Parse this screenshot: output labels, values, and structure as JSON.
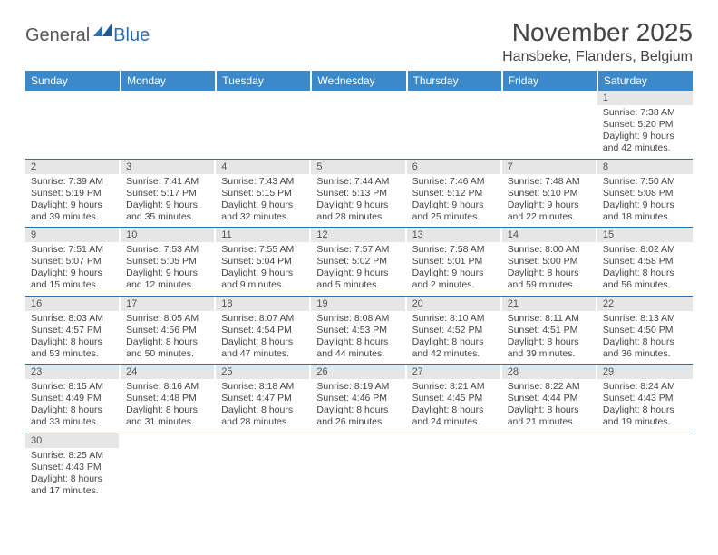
{
  "logo": {
    "part1": "General",
    "part2": "Blue"
  },
  "title": "November 2025",
  "location": "Hansbeke, Flanders, Belgium",
  "colors": {
    "header_bg": "#3b89c9",
    "header_text": "#ffffff",
    "daynum_bg": "#e6e6e6",
    "border": "#2b6fb3",
    "logo_gray": "#555555",
    "logo_blue": "#2b6fb3"
  },
  "weekdays": [
    "Sunday",
    "Monday",
    "Tuesday",
    "Wednesday",
    "Thursday",
    "Friday",
    "Saturday"
  ],
  "weeks": [
    [
      null,
      null,
      null,
      null,
      null,
      null,
      {
        "n": "1",
        "sr": "7:38 AM",
        "ss": "5:20 PM",
        "dl": "9 hours and 42 minutes."
      }
    ],
    [
      {
        "n": "2",
        "sr": "7:39 AM",
        "ss": "5:19 PM",
        "dl": "9 hours and 39 minutes."
      },
      {
        "n": "3",
        "sr": "7:41 AM",
        "ss": "5:17 PM",
        "dl": "9 hours and 35 minutes."
      },
      {
        "n": "4",
        "sr": "7:43 AM",
        "ss": "5:15 PM",
        "dl": "9 hours and 32 minutes."
      },
      {
        "n": "5",
        "sr": "7:44 AM",
        "ss": "5:13 PM",
        "dl": "9 hours and 28 minutes."
      },
      {
        "n": "6",
        "sr": "7:46 AM",
        "ss": "5:12 PM",
        "dl": "9 hours and 25 minutes."
      },
      {
        "n": "7",
        "sr": "7:48 AM",
        "ss": "5:10 PM",
        "dl": "9 hours and 22 minutes."
      },
      {
        "n": "8",
        "sr": "7:50 AM",
        "ss": "5:08 PM",
        "dl": "9 hours and 18 minutes."
      }
    ],
    [
      {
        "n": "9",
        "sr": "7:51 AM",
        "ss": "5:07 PM",
        "dl": "9 hours and 15 minutes."
      },
      {
        "n": "10",
        "sr": "7:53 AM",
        "ss": "5:05 PM",
        "dl": "9 hours and 12 minutes."
      },
      {
        "n": "11",
        "sr": "7:55 AM",
        "ss": "5:04 PM",
        "dl": "9 hours and 9 minutes."
      },
      {
        "n": "12",
        "sr": "7:57 AM",
        "ss": "5:02 PM",
        "dl": "9 hours and 5 minutes."
      },
      {
        "n": "13",
        "sr": "7:58 AM",
        "ss": "5:01 PM",
        "dl": "9 hours and 2 minutes."
      },
      {
        "n": "14",
        "sr": "8:00 AM",
        "ss": "5:00 PM",
        "dl": "8 hours and 59 minutes."
      },
      {
        "n": "15",
        "sr": "8:02 AM",
        "ss": "4:58 PM",
        "dl": "8 hours and 56 minutes."
      }
    ],
    [
      {
        "n": "16",
        "sr": "8:03 AM",
        "ss": "4:57 PM",
        "dl": "8 hours and 53 minutes."
      },
      {
        "n": "17",
        "sr": "8:05 AM",
        "ss": "4:56 PM",
        "dl": "8 hours and 50 minutes."
      },
      {
        "n": "18",
        "sr": "8:07 AM",
        "ss": "4:54 PM",
        "dl": "8 hours and 47 minutes."
      },
      {
        "n": "19",
        "sr": "8:08 AM",
        "ss": "4:53 PM",
        "dl": "8 hours and 44 minutes."
      },
      {
        "n": "20",
        "sr": "8:10 AM",
        "ss": "4:52 PM",
        "dl": "8 hours and 42 minutes."
      },
      {
        "n": "21",
        "sr": "8:11 AM",
        "ss": "4:51 PM",
        "dl": "8 hours and 39 minutes."
      },
      {
        "n": "22",
        "sr": "8:13 AM",
        "ss": "4:50 PM",
        "dl": "8 hours and 36 minutes."
      }
    ],
    [
      {
        "n": "23",
        "sr": "8:15 AM",
        "ss": "4:49 PM",
        "dl": "8 hours and 33 minutes."
      },
      {
        "n": "24",
        "sr": "8:16 AM",
        "ss": "4:48 PM",
        "dl": "8 hours and 31 minutes."
      },
      {
        "n": "25",
        "sr": "8:18 AM",
        "ss": "4:47 PM",
        "dl": "8 hours and 28 minutes."
      },
      {
        "n": "26",
        "sr": "8:19 AM",
        "ss": "4:46 PM",
        "dl": "8 hours and 26 minutes."
      },
      {
        "n": "27",
        "sr": "8:21 AM",
        "ss": "4:45 PM",
        "dl": "8 hours and 24 minutes."
      },
      {
        "n": "28",
        "sr": "8:22 AM",
        "ss": "4:44 PM",
        "dl": "8 hours and 21 minutes."
      },
      {
        "n": "29",
        "sr": "8:24 AM",
        "ss": "4:43 PM",
        "dl": "8 hours and 19 minutes."
      }
    ],
    [
      {
        "n": "30",
        "sr": "8:25 AM",
        "ss": "4:43 PM",
        "dl": "8 hours and 17 minutes."
      },
      null,
      null,
      null,
      null,
      null,
      null
    ]
  ],
  "labels": {
    "sunrise": "Sunrise:",
    "sunset": "Sunset:",
    "daylight": "Daylight:"
  }
}
